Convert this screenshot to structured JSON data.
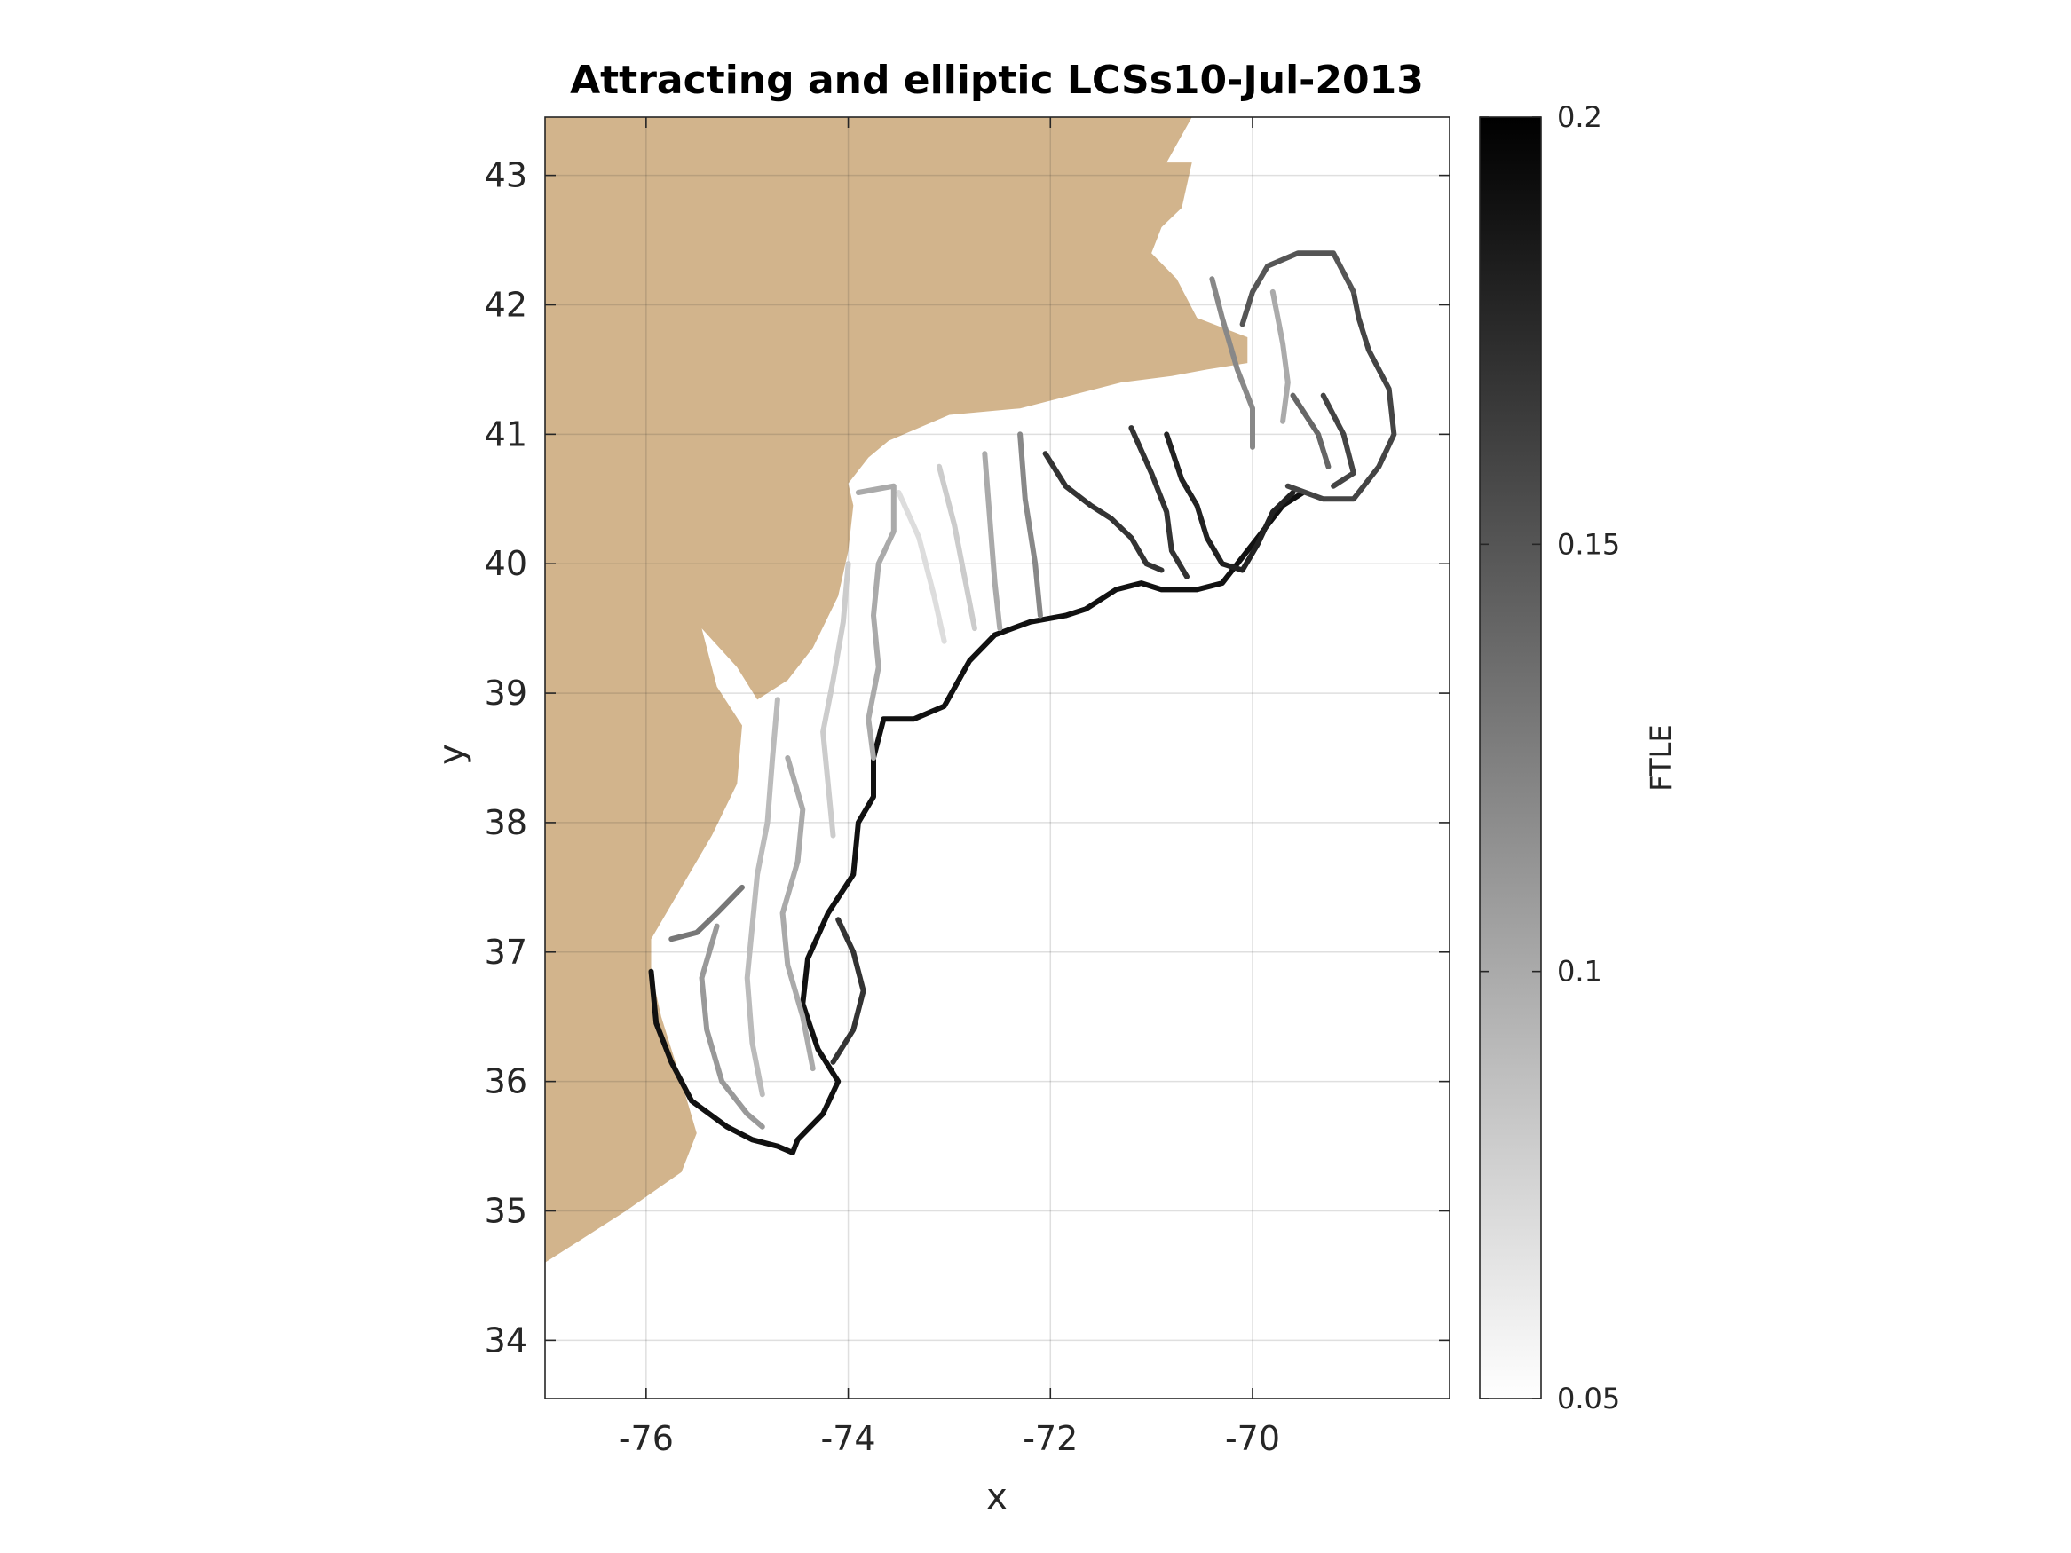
{
  "chart_data": {
    "type": "heatmap",
    "title": "Attracting and elliptic LCSs10-Jul-2013",
    "xlabel": "x",
    "ylabel": "y",
    "xlim": [
      -77.0,
      -68.05
    ],
    "ylim": [
      33.55,
      43.45
    ],
    "x_ticks": [
      -76,
      -74,
      -72,
      -70
    ],
    "y_ticks": [
      34,
      35,
      36,
      37,
      38,
      39,
      40,
      41,
      42,
      43
    ],
    "x_tick_labels": [
      "-76",
      "-74",
      "-72",
      "-70"
    ],
    "y_tick_labels": [
      "34",
      "35",
      "36",
      "37",
      "38",
      "39",
      "40",
      "41",
      "42",
      "43"
    ],
    "grid": true,
    "land_color": "#D2B48C",
    "colorbar": {
      "label": "FTLE",
      "range": [
        0.05,
        0.2
      ],
      "ticks": [
        0.05,
        0.1,
        0.15,
        0.2
      ],
      "tick_labels": [
        "0.05",
        "0.1",
        "0.15",
        "0.2"
      ],
      "colormap": "gray-reversed"
    },
    "coastline_lonlat": [
      [
        -77.0,
        43.45
      ],
      [
        -76.7,
        43.45
      ],
      [
        -75.8,
        43.45
      ],
      [
        -74.5,
        43.45
      ],
      [
        -73.2,
        43.45
      ],
      [
        -72.4,
        43.45
      ],
      [
        -71.6,
        43.45
      ],
      [
        -70.6,
        43.45
      ],
      [
        -70.85,
        43.1
      ],
      [
        -70.6,
        43.1
      ],
      [
        -70.7,
        42.75
      ],
      [
        -70.9,
        42.6
      ],
      [
        -71.0,
        42.4
      ],
      [
        -70.75,
        42.2
      ],
      [
        -70.55,
        41.9
      ],
      [
        -70.05,
        41.75
      ],
      [
        -70.05,
        41.55
      ],
      [
        -70.45,
        41.5
      ],
      [
        -70.8,
        41.45
      ],
      [
        -71.3,
        41.4
      ],
      [
        -72.3,
        41.2
      ],
      [
        -73.0,
        41.15
      ],
      [
        -73.6,
        40.95
      ],
      [
        -73.8,
        40.82
      ],
      [
        -74.0,
        40.62
      ],
      [
        -73.95,
        40.45
      ],
      [
        -74.0,
        40.1
      ],
      [
        -74.1,
        39.75
      ],
      [
        -74.35,
        39.35
      ],
      [
        -74.6,
        39.1
      ],
      [
        -74.9,
        38.95
      ],
      [
        -75.1,
        39.2
      ],
      [
        -75.45,
        39.5
      ],
      [
        -75.3,
        39.05
      ],
      [
        -75.05,
        38.75
      ],
      [
        -75.1,
        38.3
      ],
      [
        -75.35,
        37.9
      ],
      [
        -75.8,
        37.3
      ],
      [
        -75.95,
        37.1
      ],
      [
        -75.95,
        36.85
      ],
      [
        -75.85,
        36.5
      ],
      [
        -75.65,
        36.0
      ],
      [
        -75.5,
        35.6
      ],
      [
        -75.65,
        35.3
      ],
      [
        -76.2,
        35.0
      ],
      [
        -76.8,
        34.7
      ],
      [
        -77.0,
        34.6
      ]
    ],
    "lcs_curves": [
      {
        "ftle": 0.19,
        "points": [
          [
            -75.95,
            36.85
          ],
          [
            -75.9,
            36.45
          ],
          [
            -75.75,
            36.15
          ],
          [
            -75.55,
            35.85
          ],
          [
            -75.2,
            35.65
          ],
          [
            -74.95,
            35.55
          ],
          [
            -74.7,
            35.5
          ],
          [
            -74.55,
            35.45
          ],
          [
            -74.5,
            35.55
          ],
          [
            -74.25,
            35.75
          ],
          [
            -74.1,
            36.0
          ],
          [
            -74.3,
            36.25
          ],
          [
            -74.45,
            36.6
          ],
          [
            -74.4,
            36.95
          ],
          [
            -74.2,
            37.3
          ],
          [
            -73.95,
            37.6
          ],
          [
            -73.9,
            38.0
          ],
          [
            -73.75,
            38.2
          ],
          [
            -73.75,
            38.5
          ],
          [
            -73.65,
            38.8
          ],
          [
            -73.35,
            38.8
          ],
          [
            -73.05,
            38.9
          ],
          [
            -72.8,
            39.25
          ],
          [
            -72.55,
            39.45
          ],
          [
            -72.2,
            39.55
          ],
          [
            -71.85,
            39.6
          ],
          [
            -71.65,
            39.65
          ],
          [
            -71.35,
            39.8
          ],
          [
            -71.1,
            39.85
          ],
          [
            -70.9,
            39.8
          ],
          [
            -70.55,
            39.8
          ],
          [
            -70.3,
            39.85
          ],
          [
            -70.15,
            40.0
          ],
          [
            -69.9,
            40.25
          ],
          [
            -69.7,
            40.45
          ],
          [
            -69.5,
            40.55
          ]
        ]
      },
      {
        "ftle": 0.17,
        "points": [
          [
            -72.05,
            40.85
          ],
          [
            -71.85,
            40.6
          ],
          [
            -71.6,
            40.45
          ],
          [
            -71.4,
            40.35
          ],
          [
            -71.2,
            40.2
          ],
          [
            -71.05,
            40.0
          ],
          [
            -70.9,
            39.95
          ]
        ]
      },
      {
        "ftle": 0.18,
        "points": [
          [
            -70.85,
            41.0
          ],
          [
            -70.7,
            40.65
          ],
          [
            -70.55,
            40.45
          ],
          [
            -70.45,
            40.2
          ],
          [
            -70.3,
            40.0
          ],
          [
            -70.1,
            39.95
          ],
          [
            -69.95,
            40.15
          ],
          [
            -69.8,
            40.4
          ],
          [
            -69.6,
            40.55
          ]
        ]
      },
      {
        "ftle": 0.17,
        "points": [
          [
            -71.2,
            41.05
          ],
          [
            -71.0,
            40.7
          ],
          [
            -70.85,
            40.4
          ],
          [
            -70.8,
            40.1
          ],
          [
            -70.65,
            39.9
          ]
        ]
      },
      {
        "ftle": 0.16,
        "points": [
          [
            -69.65,
            40.6
          ],
          [
            -69.3,
            40.5
          ],
          [
            -69.0,
            40.5
          ],
          [
            -68.75,
            40.75
          ],
          [
            -68.6,
            41.0
          ],
          [
            -68.65,
            41.35
          ],
          [
            -68.85,
            41.65
          ],
          [
            -68.95,
            41.9
          ],
          [
            -69.0,
            42.1
          ]
        ]
      },
      {
        "ftle": 0.15,
        "points": [
          [
            -69.0,
            42.1
          ],
          [
            -69.2,
            42.4
          ],
          [
            -69.55,
            42.4
          ],
          [
            -69.85,
            42.3
          ],
          [
            -70.0,
            42.1
          ],
          [
            -70.1,
            41.85
          ]
        ]
      },
      {
        "ftle": 0.16,
        "points": [
          [
            -69.3,
            41.3
          ],
          [
            -69.1,
            41.0
          ],
          [
            -69.0,
            40.7
          ],
          [
            -69.2,
            40.6
          ]
        ]
      },
      {
        "ftle": 0.14,
        "points": [
          [
            -69.6,
            41.3
          ],
          [
            -69.35,
            41.0
          ],
          [
            -69.25,
            40.75
          ]
        ]
      },
      {
        "ftle": 0.12,
        "points": [
          [
            -72.3,
            41.0
          ],
          [
            -72.25,
            40.5
          ],
          [
            -72.15,
            40.0
          ],
          [
            -72.1,
            39.6
          ]
        ]
      },
      {
        "ftle": 0.1,
        "points": [
          [
            -72.65,
            40.85
          ],
          [
            -72.6,
            40.35
          ],
          [
            -72.55,
            39.85
          ],
          [
            -72.5,
            39.5
          ]
        ]
      },
      {
        "ftle": 0.08,
        "points": [
          [
            -73.1,
            40.75
          ],
          [
            -72.95,
            40.3
          ],
          [
            -72.85,
            39.9
          ],
          [
            -72.75,
            39.5
          ]
        ]
      },
      {
        "ftle": 0.07,
        "points": [
          [
            -73.5,
            40.55
          ],
          [
            -73.3,
            40.2
          ],
          [
            -73.15,
            39.75
          ],
          [
            -73.05,
            39.4
          ]
        ]
      },
      {
        "ftle": 0.1,
        "points": [
          [
            -73.9,
            40.55
          ],
          [
            -73.55,
            40.6
          ],
          [
            -73.55,
            40.25
          ],
          [
            -73.7,
            40.0
          ],
          [
            -73.75,
            39.6
          ],
          [
            -73.7,
            39.2
          ],
          [
            -73.8,
            38.8
          ],
          [
            -73.75,
            38.5
          ]
        ]
      },
      {
        "ftle": 0.08,
        "points": [
          [
            -74.0,
            40.0
          ],
          [
            -74.05,
            39.55
          ],
          [
            -74.15,
            39.1
          ],
          [
            -74.25,
            38.7
          ],
          [
            -74.2,
            38.3
          ],
          [
            -74.15,
            37.9
          ]
        ]
      },
      {
        "ftle": 0.09,
        "points": [
          [
            -74.7,
            38.95
          ],
          [
            -74.75,
            38.5
          ],
          [
            -74.8,
            38.0
          ],
          [
            -74.9,
            37.6
          ],
          [
            -74.95,
            37.2
          ],
          [
            -75.0,
            36.8
          ],
          [
            -74.95,
            36.3
          ],
          [
            -74.85,
            35.9
          ]
        ]
      },
      {
        "ftle": 0.11,
        "points": [
          [
            -75.3,
            37.2
          ],
          [
            -75.45,
            36.8
          ],
          [
            -75.4,
            36.4
          ],
          [
            -75.25,
            36.0
          ],
          [
            -75.0,
            35.75
          ],
          [
            -74.85,
            35.65
          ]
        ]
      },
      {
        "ftle": 0.13,
        "points": [
          [
            -75.75,
            37.1
          ],
          [
            -75.5,
            37.15
          ],
          [
            -75.3,
            37.3
          ],
          [
            -75.05,
            37.5
          ]
        ]
      },
      {
        "ftle": 0.1,
        "points": [
          [
            -74.6,
            38.5
          ],
          [
            -74.45,
            38.1
          ],
          [
            -74.5,
            37.7
          ],
          [
            -74.65,
            37.3
          ],
          [
            -74.6,
            36.9
          ],
          [
            -74.45,
            36.5
          ],
          [
            -74.35,
            36.1
          ]
        ]
      },
      {
        "ftle": 0.17,
        "points": [
          [
            -74.1,
            37.25
          ],
          [
            -73.95,
            37.0
          ],
          [
            -73.85,
            36.7
          ],
          [
            -73.95,
            36.4
          ],
          [
            -74.15,
            36.15
          ]
        ]
      },
      {
        "ftle": 0.12,
        "points": [
          [
            -70.4,
            42.2
          ],
          [
            -70.3,
            41.9
          ],
          [
            -70.15,
            41.5
          ],
          [
            -70.0,
            41.2
          ],
          [
            -70.0,
            40.9
          ]
        ]
      },
      {
        "ftle": 0.1,
        "points": [
          [
            -69.8,
            42.1
          ],
          [
            -69.7,
            41.7
          ],
          [
            -69.65,
            41.4
          ],
          [
            -69.7,
            41.1
          ]
        ]
      }
    ]
  }
}
